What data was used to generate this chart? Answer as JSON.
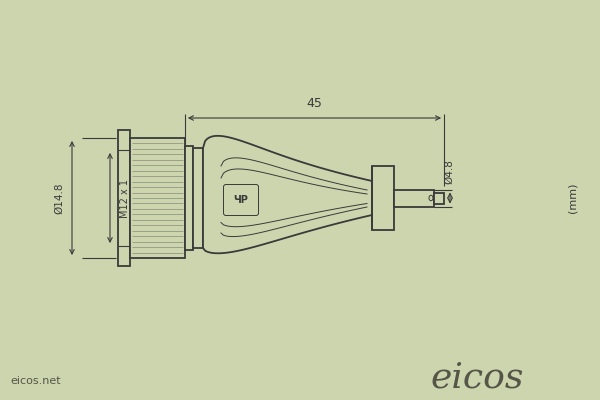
{
  "bg_color": "#cdd5ae",
  "line_color": "#3a3a3a",
  "knurl_color": "#8a8a7a",
  "label_45": "45",
  "label_d14": "Ø14.8",
  "label_m12": "M12 x 1",
  "label_d48": "Ø4.8",
  "label_mm": "(mm)",
  "label_eicos": "eicos",
  "label_eicos_net": "eicos.net",
  "fig_w": 6.0,
  "fig_h": 4.0,
  "xlim": [
    0,
    6
  ],
  "ylim": [
    0,
    4
  ]
}
